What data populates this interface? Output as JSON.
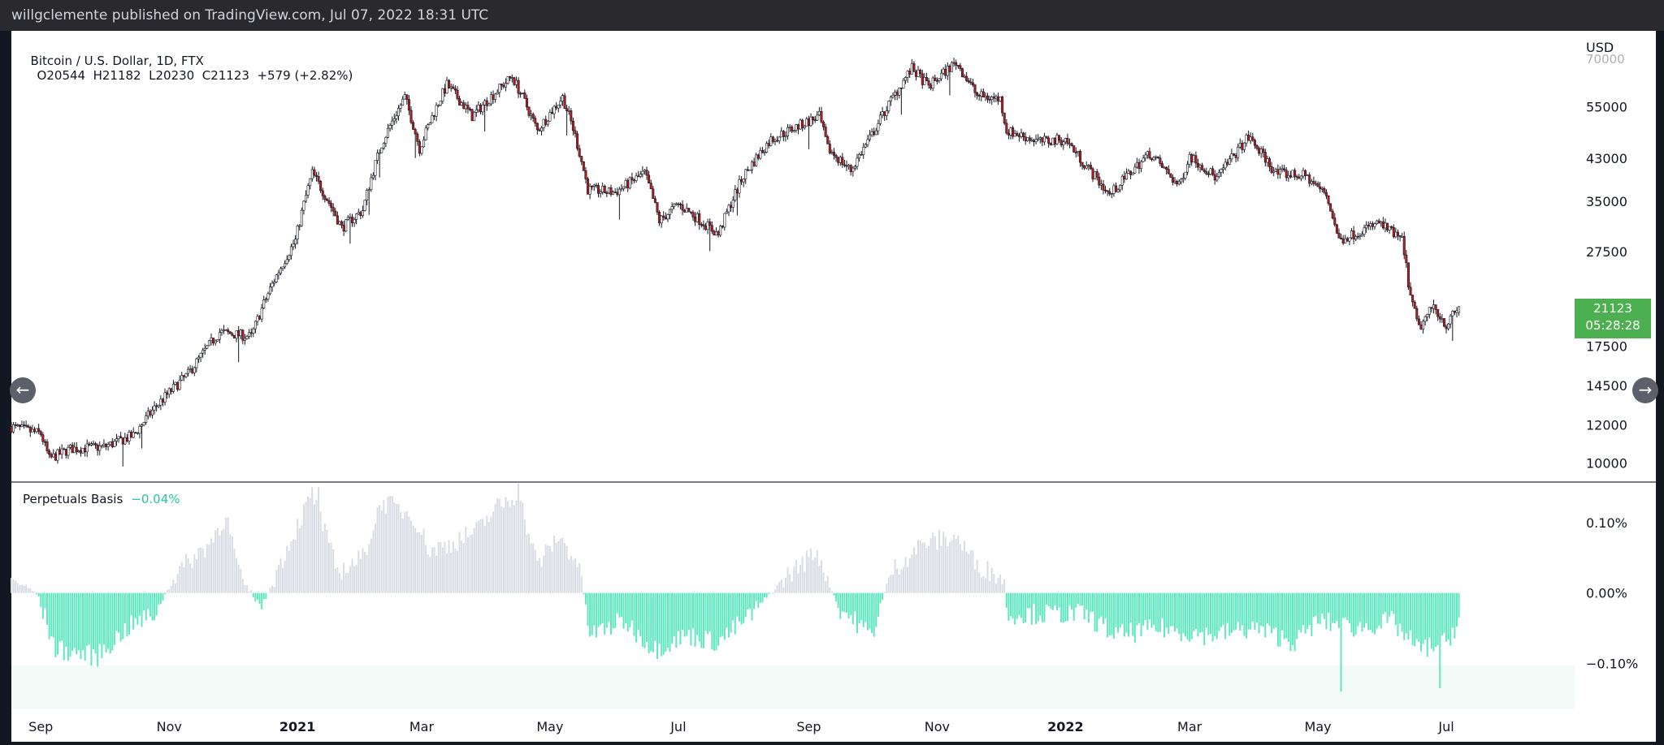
{
  "header": {
    "publisher_text": "willgclemente published on TradingView.com, Jul 07, 2022 18:31 UTC"
  },
  "main_legend": {
    "symbol": "Bitcoin / U.S. Dollar, 1D, FTX",
    "ohlc": "O20544  H21182  L20230  C21123  +579 (+2.82%)"
  },
  "sub_legend": {
    "name": "Perpetuals Basis",
    "value": "−0.04%"
  },
  "price_axis": {
    "unit": "USD",
    "top_partial": "70000",
    "last_price": "21123",
    "countdown": "05:28:28"
  },
  "basis_axis": {
    "ticks": [
      "0.10%",
      "0.00%",
      "−0.10%"
    ]
  },
  "colors": {
    "up": "#ffffff",
    "down": "#b71c1c",
    "wick": "#131722",
    "basis_pos": "#d9dce3",
    "basis_neg": "#5ee8be",
    "price_tag": "#4caf50",
    "band": "#f2fbf8"
  },
  "nav": {
    "left_icon": "arrow-left-icon",
    "right_icon": "arrow-right-icon"
  },
  "chart_data": [
    {
      "type": "candlestick",
      "title": "Bitcoin / U.S. Dollar, 1D, FTX",
      "yscale": "log",
      "ylim": [
        9200,
        72000
      ],
      "xlim": [
        "2020-08-18",
        "2022-08-31"
      ],
      "y_ticks": [
        10000,
        12000,
        14500,
        17500,
        27500,
        35000,
        43000,
        55000
      ],
      "x_ticks": [
        {
          "date": "2020-09-01",
          "label": "Sep"
        },
        {
          "date": "2020-11-01",
          "label": "Nov"
        },
        {
          "date": "2021-01-01",
          "label": "2021"
        },
        {
          "date": "2021-03-01",
          "label": "Mar"
        },
        {
          "date": "2021-05-01",
          "label": "May"
        },
        {
          "date": "2021-07-01",
          "label": "Jul"
        },
        {
          "date": "2021-09-01",
          "label": "Sep"
        },
        {
          "date": "2021-11-01",
          "label": "Nov"
        },
        {
          "date": "2022-01-01",
          "label": "2022"
        },
        {
          "date": "2022-03-01",
          "label": "Mar"
        },
        {
          "date": "2022-05-01",
          "label": "May"
        },
        {
          "date": "2022-07-01",
          "label": "Jul"
        }
      ],
      "close_path": [
        [
          "2020-08-18",
          11900
        ],
        [
          "2020-09-01",
          11500
        ],
        [
          "2020-09-05",
          10200
        ],
        [
          "2020-09-15",
          10700
        ],
        [
          "2020-10-01",
          10800
        ],
        [
          "2020-10-15",
          11400
        ],
        [
          "2020-10-25",
          13000
        ],
        [
          "2020-11-10",
          15300
        ],
        [
          "2020-11-25",
          18700
        ],
        [
          "2020-12-10",
          18300
        ],
        [
          "2020-12-20",
          23500
        ],
        [
          "2020-12-31",
          29000
        ],
        [
          "2021-01-08",
          40000
        ],
        [
          "2021-01-22",
          30800
        ],
        [
          "2021-02-01",
          33500
        ],
        [
          "2021-02-10",
          46000
        ],
        [
          "2021-02-21",
          57500
        ],
        [
          "2021-02-28",
          45000
        ],
        [
          "2021-03-13",
          61000
        ],
        [
          "2021-03-25",
          52500
        ],
        [
          "2021-04-13",
          63500
        ],
        [
          "2021-04-25",
          49000
        ],
        [
          "2021-05-07",
          57500
        ],
        [
          "2021-05-12",
          49500
        ],
        [
          "2021-05-19",
          37000
        ],
        [
          "2021-06-01",
          36500
        ],
        [
          "2021-06-15",
          40000
        ],
        [
          "2021-06-22",
          31800
        ],
        [
          "2021-07-01",
          34500
        ],
        [
          "2021-07-20",
          29800
        ],
        [
          "2021-08-01",
          39500
        ],
        [
          "2021-08-14",
          47000
        ],
        [
          "2021-09-06",
          52500
        ],
        [
          "2021-09-10",
          45000
        ],
        [
          "2021-09-21",
          40500
        ],
        [
          "2021-10-01",
          48000
        ],
        [
          "2021-10-20",
          66000
        ],
        [
          "2021-10-28",
          60500
        ],
        [
          "2021-11-10",
          68000
        ],
        [
          "2021-11-20",
          58000
        ],
        [
          "2021-12-01",
          57000
        ],
        [
          "2021-12-04",
          49000
        ],
        [
          "2021-12-20",
          46500
        ],
        [
          "2022-01-01",
          47000
        ],
        [
          "2022-01-10",
          41800
        ],
        [
          "2022-01-22",
          36000
        ],
        [
          "2022-02-10",
          44000
        ],
        [
          "2022-02-24",
          37500
        ],
        [
          "2022-03-01",
          43500
        ],
        [
          "2022-03-14",
          39000
        ],
        [
          "2022-03-29",
          47500
        ],
        [
          "2022-04-11",
          40000
        ],
        [
          "2022-04-25",
          39500
        ],
        [
          "2022-05-05",
          36000
        ],
        [
          "2022-05-11",
          29000
        ],
        [
          "2022-05-30",
          31500
        ],
        [
          "2022-06-10",
          29000
        ],
        [
          "2022-06-14",
          22000
        ],
        [
          "2022-06-18",
          19000
        ],
        [
          "2022-06-25",
          21200
        ],
        [
          "2022-07-01",
          19300
        ],
        [
          "2022-07-07",
          21123
        ]
      ],
      "last": {
        "date": "2022-07-07",
        "open": 20544,
        "high": 21182,
        "low": 20230,
        "close": 21123
      }
    },
    {
      "type": "bar",
      "title": "Perpetuals Basis",
      "ylim": [
        -0.165,
        0.155
      ],
      "y_ticks": [
        0.1,
        0.0,
        -0.1
      ],
      "y_unit": "%",
      "basis_path": [
        [
          "2020-08-18",
          0.02
        ],
        [
          "2020-08-30",
          0.0
        ],
        [
          "2020-09-08",
          -0.08
        ],
        [
          "2020-09-28",
          -0.09
        ],
        [
          "2020-10-12",
          -0.05
        ],
        [
          "2020-10-25",
          -0.03
        ],
        [
          "2020-11-05",
          0.03
        ],
        [
          "2020-11-20",
          0.07
        ],
        [
          "2020-11-28",
          0.11
        ],
        [
          "2020-12-05",
          0.02
        ],
        [
          "2020-12-15",
          -0.02
        ],
        [
          "2020-12-28",
          0.07
        ],
        [
          "2021-01-08",
          0.14
        ],
        [
          "2021-01-20",
          0.03
        ],
        [
          "2021-02-01",
          0.05
        ],
        [
          "2021-02-10",
          0.13
        ],
        [
          "2021-02-25",
          0.11
        ],
        [
          "2021-03-05",
          0.06
        ],
        [
          "2021-03-15",
          0.07
        ],
        [
          "2021-03-28",
          0.09
        ],
        [
          "2021-04-05",
          0.12
        ],
        [
          "2021-04-16",
          0.14
        ],
        [
          "2021-04-25",
          0.04
        ],
        [
          "2021-05-05",
          0.08
        ],
        [
          "2021-05-15",
          0.04
        ],
        [
          "2021-05-20",
          -0.06
        ],
        [
          "2021-06-05",
          -0.04
        ],
        [
          "2021-06-20",
          -0.08
        ],
        [
          "2021-07-05",
          -0.06
        ],
        [
          "2021-07-20",
          -0.07
        ],
        [
          "2021-08-05",
          -0.03
        ],
        [
          "2021-08-20",
          0.02
        ],
        [
          "2021-09-05",
          0.06
        ],
        [
          "2021-09-15",
          -0.02
        ],
        [
          "2021-10-01",
          -0.06
        ],
        [
          "2021-10-10",
          0.03
        ],
        [
          "2021-10-25",
          0.07
        ],
        [
          "2021-11-10",
          0.08
        ],
        [
          "2021-11-20",
          0.04
        ],
        [
          "2021-12-03",
          0.02
        ],
        [
          "2021-12-04",
          -0.03
        ],
        [
          "2022-01-10",
          -0.03
        ],
        [
          "2022-01-25",
          -0.06
        ],
        [
          "2022-02-15",
          -0.05
        ],
        [
          "2022-03-10",
          -0.06
        ],
        [
          "2022-04-01",
          -0.05
        ],
        [
          "2022-04-20",
          -0.07
        ],
        [
          "2022-05-01",
          -0.04
        ],
        [
          "2022-05-20",
          -0.05
        ],
        [
          "2022-06-05",
          -0.04
        ],
        [
          "2022-06-18",
          -0.08
        ],
        [
          "2022-07-01",
          -0.07
        ],
        [
          "2022-07-07",
          -0.04
        ]
      ],
      "spikes": [
        [
          "2022-05-12",
          -0.14
        ],
        [
          "2022-06-28",
          -0.135
        ],
        [
          "2021-01-11",
          0.15
        ],
        [
          "2021-04-16",
          0.155
        ]
      ]
    }
  ]
}
